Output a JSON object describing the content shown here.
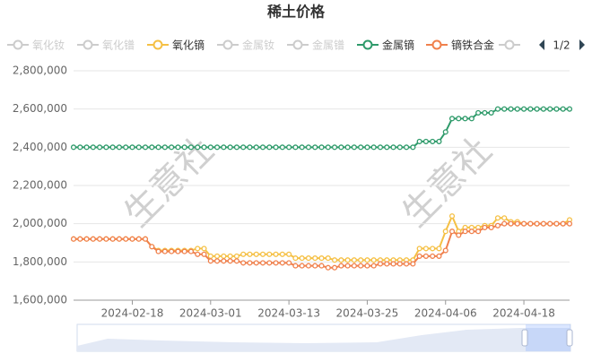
{
  "chart_data": {
    "type": "line",
    "title": "稀土价格",
    "watermark": "生意社",
    "legend_page": "1/2",
    "categories": [
      null,
      null,
      null,
      null,
      null,
      null,
      null,
      null,
      null,
      "2024-02-18",
      null,
      null,
      null,
      null,
      null,
      null,
      null,
      null,
      null,
      null,
      null,
      "2024-03-01",
      null,
      null,
      null,
      null,
      null,
      null,
      null,
      null,
      null,
      null,
      null,
      "2024-03-13",
      null,
      null,
      null,
      null,
      null,
      null,
      null,
      null,
      null,
      null,
      null,
      "2024-03-25",
      null,
      null,
      null,
      null,
      null,
      null,
      null,
      null,
      null,
      null,
      null,
      "2024-04-06",
      null,
      null,
      null,
      null,
      null,
      null,
      null,
      null,
      null,
      null,
      null,
      "2024-04-18",
      null,
      null,
      null,
      null,
      null,
      null,
      null
    ],
    "ylim": [
      1600000,
      2800000
    ],
    "yticks": [
      {
        "value": 1600000,
        "label": "1,600,000"
      },
      {
        "value": 1800000,
        "label": "1,800,000"
      },
      {
        "value": 2000000,
        "label": "2,000,000"
      },
      {
        "value": 2200000,
        "label": "2,200,000"
      },
      {
        "value": 2400000,
        "label": "2,400,000"
      },
      {
        "value": 2600000,
        "label": "2,600,000"
      },
      {
        "value": 2800000,
        "label": "2,800,000"
      }
    ],
    "grid": true,
    "series": [
      {
        "name": "氧化钕",
        "color": "#cccccc",
        "hidden": true
      },
      {
        "name": "氧化镨",
        "color": "#cccccc",
        "hidden": true
      },
      {
        "name": "氧化镝",
        "color": "#f5c044",
        "values": [
          1920000,
          1920000,
          1920000,
          1920000,
          1920000,
          1920000,
          1920000,
          1920000,
          1920000,
          1920000,
          1920000,
          1920000,
          1880000,
          1860000,
          1860000,
          1860000,
          1860000,
          1860000,
          1860000,
          1870000,
          1870000,
          1830000,
          1830000,
          1830000,
          1830000,
          1830000,
          1840000,
          1840000,
          1840000,
          1840000,
          1840000,
          1840000,
          1840000,
          1840000,
          1820000,
          1820000,
          1820000,
          1820000,
          1820000,
          1820000,
          1810000,
          1810000,
          1810000,
          1810000,
          1810000,
          1810000,
          1810000,
          1810000,
          1810000,
          1810000,
          1810000,
          1810000,
          1810000,
          1870000,
          1870000,
          1870000,
          1870000,
          1960000,
          2040000,
          1960000,
          1980000,
          1980000,
          1980000,
          1990000,
          1990000,
          2030000,
          2030000,
          2010000,
          2010000,
          2000000,
          2000000,
          2000000,
          2000000,
          2000000,
          2000000,
          2000000,
          2020000
        ]
      },
      {
        "name": "金属钕",
        "color": "#cccccc",
        "hidden": true
      },
      {
        "name": "金属镨",
        "color": "#cccccc",
        "hidden": true
      },
      {
        "name": "金属镝",
        "color": "#2e9a6a",
        "values": [
          2400000,
          2400000,
          2400000,
          2400000,
          2400000,
          2400000,
          2400000,
          2400000,
          2400000,
          2400000,
          2400000,
          2400000,
          2400000,
          2400000,
          2400000,
          2400000,
          2400000,
          2400000,
          2400000,
          2400000,
          2400000,
          2400000,
          2400000,
          2400000,
          2400000,
          2400000,
          2400000,
          2400000,
          2400000,
          2400000,
          2400000,
          2400000,
          2400000,
          2400000,
          2400000,
          2400000,
          2400000,
          2400000,
          2400000,
          2400000,
          2400000,
          2400000,
          2400000,
          2400000,
          2400000,
          2400000,
          2400000,
          2400000,
          2400000,
          2400000,
          2400000,
          2400000,
          2400000,
          2430000,
          2430000,
          2430000,
          2430000,
          2480000,
          2550000,
          2550000,
          2550000,
          2550000,
          2580000,
          2580000,
          2580000,
          2600000,
          2600000,
          2600000,
          2600000,
          2600000,
          2600000,
          2600000,
          2600000,
          2600000,
          2600000,
          2600000,
          2600000
        ]
      },
      {
        "name": "镝铁合金",
        "color": "#f0804c",
        "values": [
          1920000,
          1920000,
          1920000,
          1920000,
          1920000,
          1920000,
          1920000,
          1920000,
          1920000,
          1920000,
          1920000,
          1920000,
          1880000,
          1855000,
          1855000,
          1855000,
          1855000,
          1855000,
          1855000,
          1840000,
          1840000,
          1805000,
          1805000,
          1805000,
          1805000,
          1805000,
          1795000,
          1795000,
          1795000,
          1795000,
          1795000,
          1795000,
          1795000,
          1795000,
          1780000,
          1780000,
          1780000,
          1780000,
          1780000,
          1770000,
          1770000,
          1780000,
          1780000,
          1780000,
          1780000,
          1780000,
          1780000,
          1790000,
          1790000,
          1790000,
          1790000,
          1790000,
          1790000,
          1830000,
          1830000,
          1830000,
          1830000,
          1860000,
          1960000,
          1940000,
          1960000,
          1960000,
          1960000,
          1980000,
          1980000,
          1990000,
          2000000,
          2000000,
          2000000,
          2000000,
          2000000,
          2000000,
          2000000,
          2000000,
          2000000,
          2000000,
          2000000
        ]
      }
    ]
  }
}
